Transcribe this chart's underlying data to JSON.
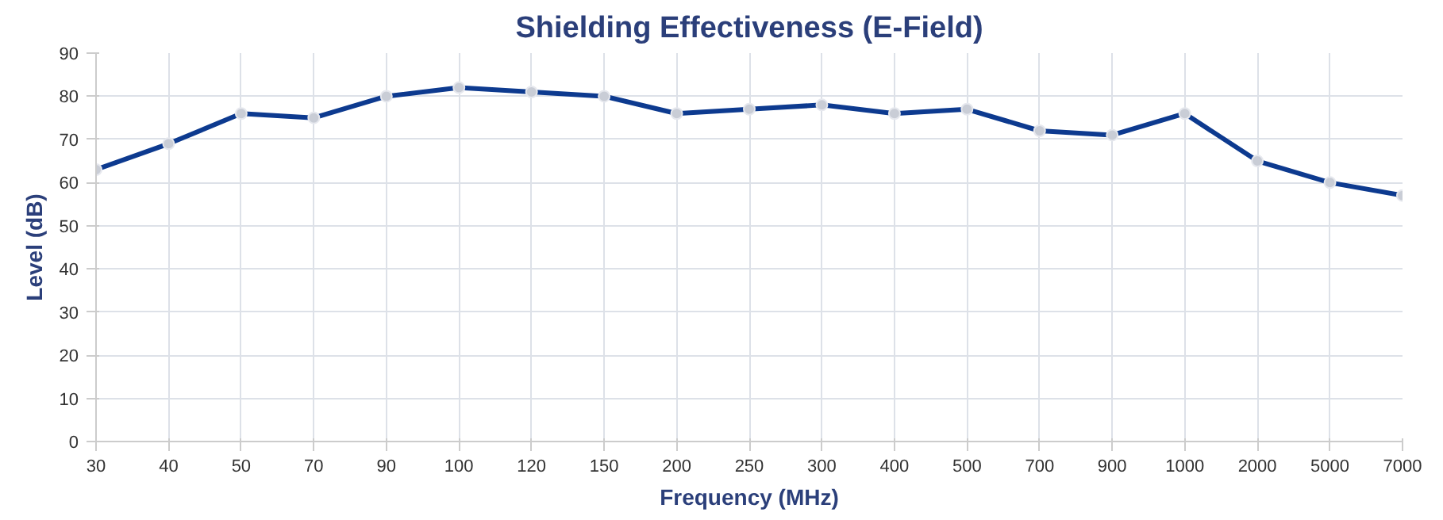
{
  "chart_data": {
    "type": "line",
    "title": "Shielding Effectiveness (E-Field)",
    "xlabel": "Frequency (MHz)",
    "ylabel": "Level (dB)",
    "categories": [
      "30",
      "40",
      "50",
      "70",
      "90",
      "100",
      "120",
      "150",
      "200",
      "250",
      "300",
      "400",
      "500",
      "700",
      "900",
      "1000",
      "2000",
      "5000",
      "7000"
    ],
    "series": [
      {
        "color": "#0d3a8f",
        "values": [
          63,
          69,
          76,
          75,
          80,
          82,
          81,
          80,
          76,
          77,
          78,
          76,
          77,
          72,
          71,
          76,
          65,
          60,
          57
        ]
      }
    ],
    "ylim": [
      0,
      90
    ],
    "yticks": [
      0,
      10,
      20,
      30,
      40,
      50,
      60,
      70,
      80,
      90
    ],
    "grid": true,
    "marker": "circle",
    "line_style": "solid"
  }
}
